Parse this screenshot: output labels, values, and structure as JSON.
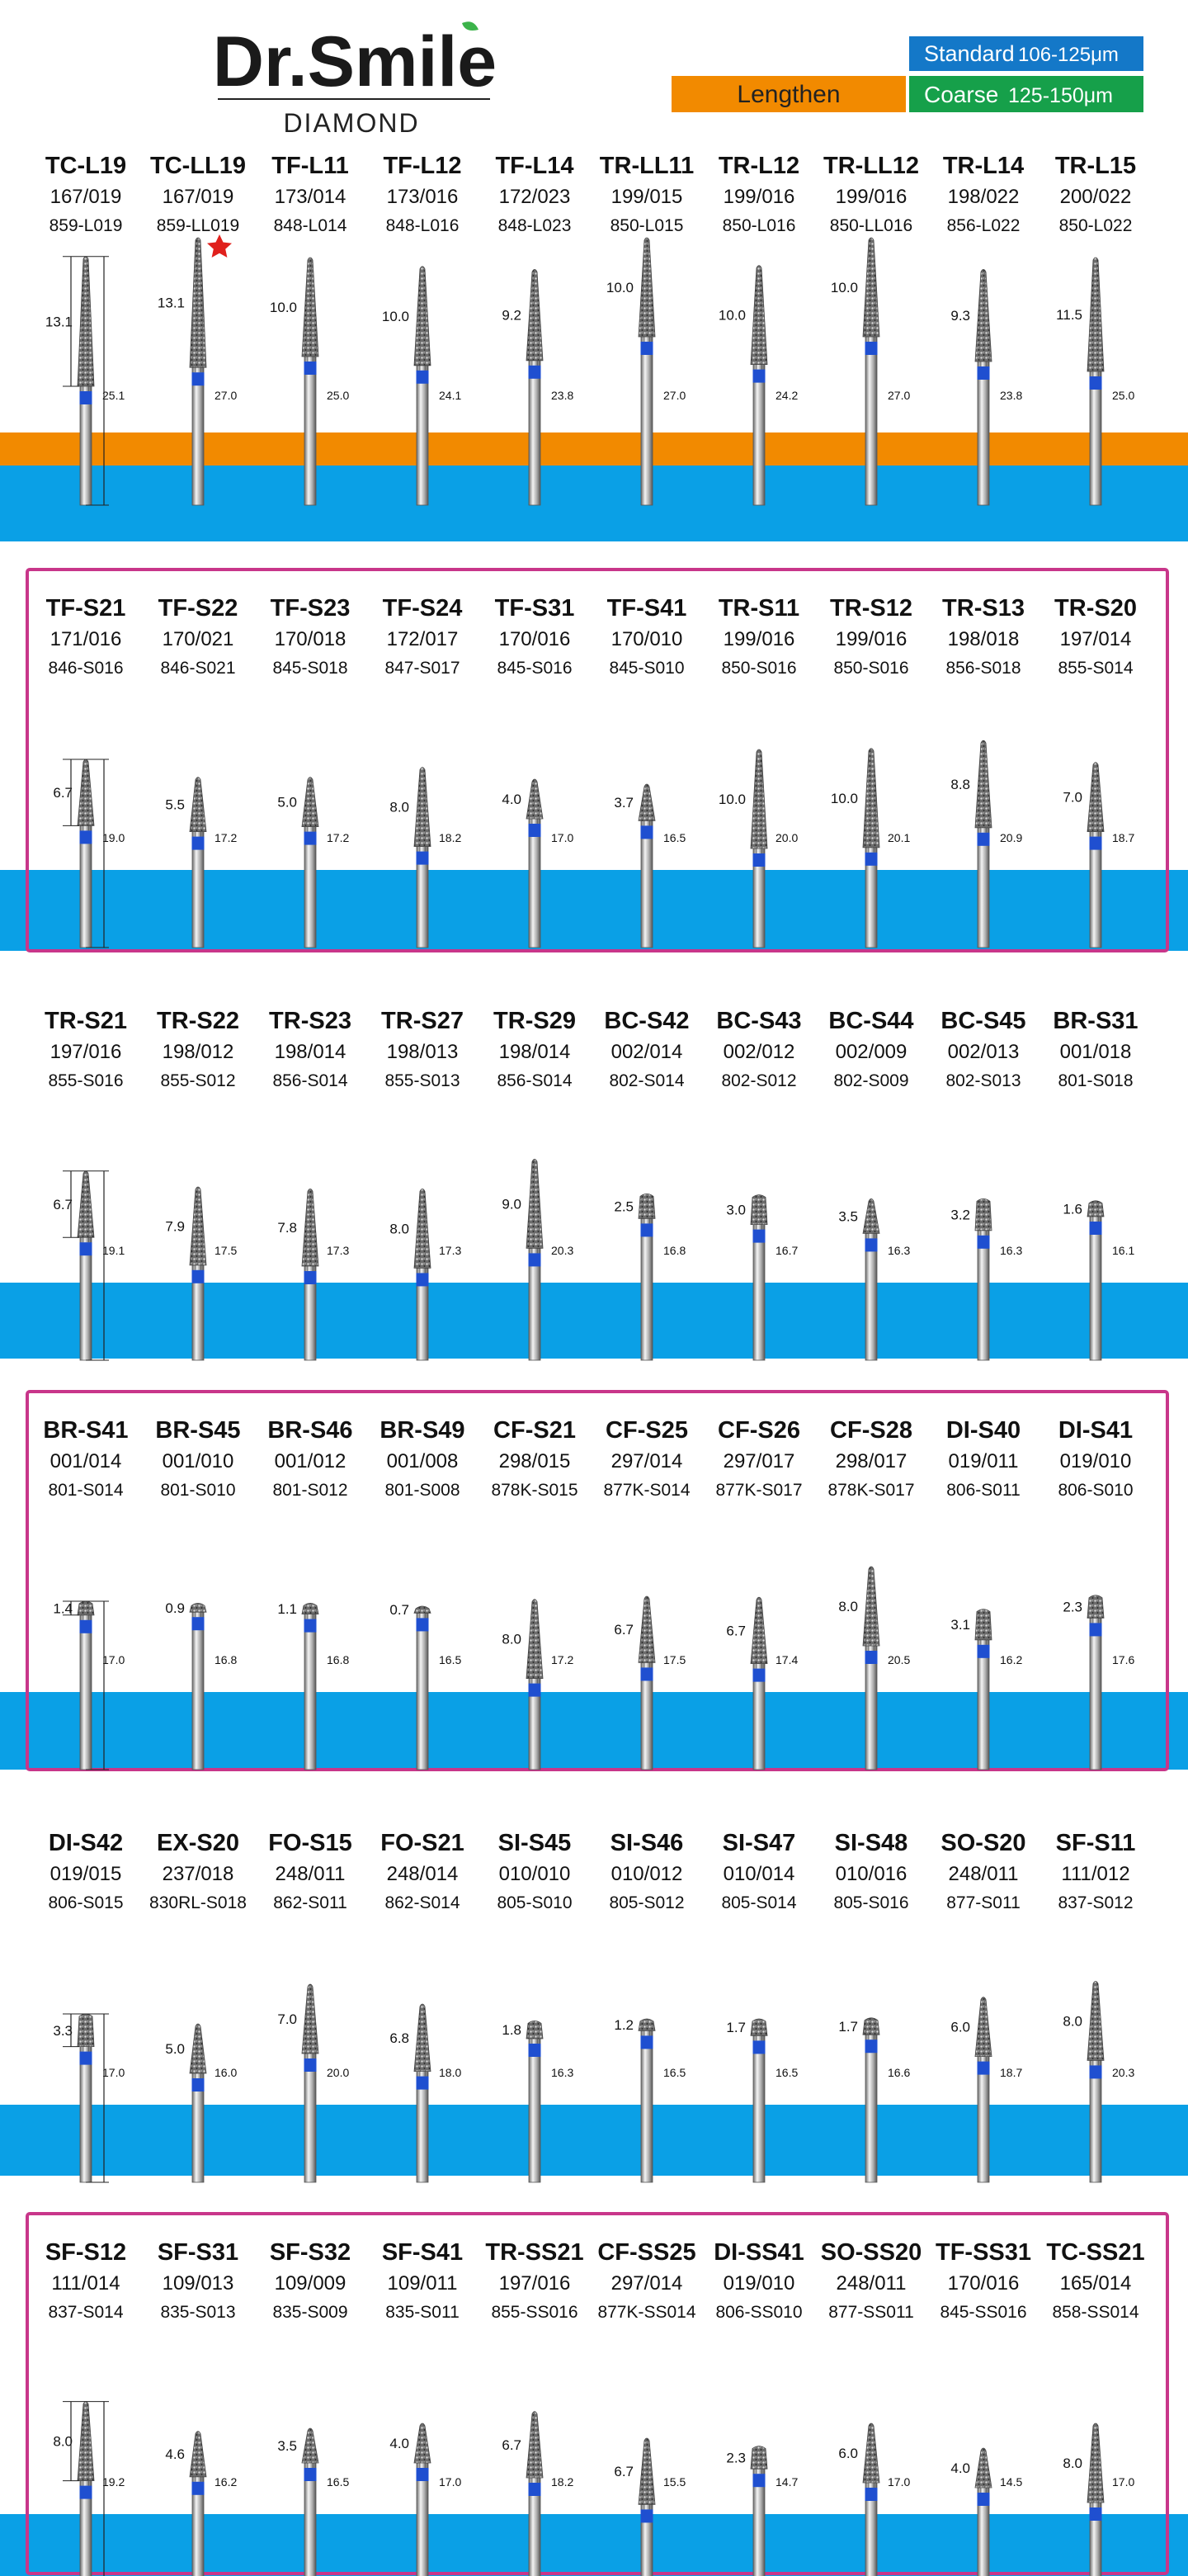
{
  "header": {
    "brand": "Dr.Smile",
    "subtitle": "DIAMOND",
    "legend": {
      "standard": {
        "label": "Standard",
        "range": "106-125μm"
      },
      "lengthen": {
        "label": "Lengthen"
      },
      "coarse": {
        "label": "Coarse",
        "range": "125-150μm"
      }
    }
  },
  "sections": [
    {
      "items": [
        {
          "code": "TC-L19",
          "iso": "167/019",
          "ref": "859-L019",
          "head": "13.1",
          "total": "25.1"
        },
        {
          "code": "TC-LL19",
          "iso": "167/019",
          "ref": "859-LL019",
          "head": "13.1",
          "total": "27.0"
        },
        {
          "code": "TF-L11",
          "iso": "173/014",
          "ref": "848-L014",
          "head": "10.0",
          "total": "25.0"
        },
        {
          "code": "TF-L12",
          "iso": "173/016",
          "ref": "848-L016",
          "head": "10.0",
          "total": "24.1"
        },
        {
          "code": "TF-L14",
          "iso": "172/023",
          "ref": "848-L023",
          "head": "9.2",
          "total": "23.8"
        },
        {
          "code": "TR-LL11",
          "iso": "199/015",
          "ref": "850-L015",
          "head": "10.0",
          "total": "27.0"
        },
        {
          "code": "TR-L12",
          "iso": "199/016",
          "ref": "850-L016",
          "head": "10.0",
          "total": "24.2"
        },
        {
          "code": "TR-LL12",
          "iso": "199/016",
          "ref": "850-LL016",
          "head": "10.0",
          "total": "27.0"
        },
        {
          "code": "TR-L14",
          "iso": "198/022",
          "ref": "856-L022",
          "head": "9.3",
          "total": "23.8"
        },
        {
          "code": "TR-L15",
          "iso": "200/022",
          "ref": "850-L022",
          "head": "11.5",
          "total": "25.0"
        }
      ]
    },
    {
      "items": [
        {
          "code": "TF-S21",
          "iso": "171/016",
          "ref": "846-S016",
          "head": "6.7",
          "total": "19.0"
        },
        {
          "code": "TF-S22",
          "iso": "170/021",
          "ref": "846-S021",
          "head": "5.5",
          "total": "17.2"
        },
        {
          "code": "TF-S23",
          "iso": "170/018",
          "ref": "845-S018",
          "head": "5.0",
          "total": "17.2"
        },
        {
          "code": "TF-S24",
          "iso": "172/017",
          "ref": "847-S017",
          "head": "8.0",
          "total": "18.2"
        },
        {
          "code": "TF-S31",
          "iso": "170/016",
          "ref": "845-S016",
          "head": "4.0",
          "total": "17.0"
        },
        {
          "code": "TF-S41",
          "iso": "170/010",
          "ref": "845-S010",
          "head": "3.7",
          "total": "16.5"
        },
        {
          "code": "TR-S11",
          "iso": "199/016",
          "ref": "850-S016",
          "head": "10.0",
          "total": "20.0"
        },
        {
          "code": "TR-S12",
          "iso": "199/016",
          "ref": "850-S016",
          "head": "10.0",
          "total": "20.1"
        },
        {
          "code": "TR-S13",
          "iso": "198/018",
          "ref": "856-S018",
          "head": "8.8",
          "total": "20.9"
        },
        {
          "code": "TR-S20",
          "iso": "197/014",
          "ref": "855-S014",
          "head": "7.0",
          "total": "18.7"
        }
      ]
    },
    {
      "items": [
        {
          "code": "TR-S21",
          "iso": "197/016",
          "ref": "855-S016",
          "head": "6.7",
          "total": "19.1"
        },
        {
          "code": "TR-S22",
          "iso": "198/012",
          "ref": "855-S012",
          "head": "7.9",
          "total": "17.5"
        },
        {
          "code": "TR-S23",
          "iso": "198/014",
          "ref": "856-S014",
          "head": "7.8",
          "total": "17.3"
        },
        {
          "code": "TR-S27",
          "iso": "198/013",
          "ref": "855-S013",
          "head": "8.0",
          "total": "17.3"
        },
        {
          "code": "TR-S29",
          "iso": "198/014",
          "ref": "856-S014",
          "head": "9.0",
          "total": "20.3"
        },
        {
          "code": "BC-S42",
          "iso": "002/014",
          "ref": "802-S014",
          "head": "2.5",
          "total": "16.8"
        },
        {
          "code": "BC-S43",
          "iso": "002/012",
          "ref": "802-S012",
          "head": "3.0",
          "total": "16.7"
        },
        {
          "code": "BC-S44",
          "iso": "002/009",
          "ref": "802-S009",
          "head": "3.5",
          "total": "16.3"
        },
        {
          "code": "BC-S45",
          "iso": "002/013",
          "ref": "802-S013",
          "head": "3.2",
          "total": "16.3"
        },
        {
          "code": "BR-S31",
          "iso": "001/018",
          "ref": "801-S018",
          "head": "1.6",
          "total": "16.1"
        }
      ]
    },
    {
      "items": [
        {
          "code": "BR-S41",
          "iso": "001/014",
          "ref": "801-S014",
          "head": "1.4",
          "total": "17.0"
        },
        {
          "code": "BR-S45",
          "iso": "001/010",
          "ref": "801-S010",
          "head": "0.9",
          "total": "16.8"
        },
        {
          "code": "BR-S46",
          "iso": "001/012",
          "ref": "801-S012",
          "head": "1.1",
          "total": "16.8"
        },
        {
          "code": "BR-S49",
          "iso": "001/008",
          "ref": "801-S008",
          "head": "0.7",
          "total": "16.5"
        },
        {
          "code": "CF-S21",
          "iso": "298/015",
          "ref": "878K-S015",
          "head": "8.0",
          "total": "17.2"
        },
        {
          "code": "CF-S25",
          "iso": "297/014",
          "ref": "877K-S014",
          "head": "6.7",
          "total": "17.5"
        },
        {
          "code": "CF-S26",
          "iso": "297/017",
          "ref": "877K-S017",
          "head": "6.7",
          "total": "17.4"
        },
        {
          "code": "CF-S28",
          "iso": "298/017",
          "ref": "878K-S017",
          "head": "8.0",
          "total": "20.5"
        },
        {
          "code": "DI-S40",
          "iso": "019/011",
          "ref": "806-S011",
          "head": "3.1",
          "total": "16.2"
        },
        {
          "code": "DI-S41",
          "iso": "019/010",
          "ref": "806-S010",
          "head": "2.3",
          "total": "17.6"
        }
      ]
    },
    {
      "items": [
        {
          "code": "DI-S42",
          "iso": "019/015",
          "ref": "806-S015",
          "head": "3.3",
          "total": "17.0"
        },
        {
          "code": "EX-S20",
          "iso": "237/018",
          "ref": "830RL-S018",
          "head": "5.0",
          "total": "16.0"
        },
        {
          "code": "FO-S15",
          "iso": "248/011",
          "ref": "862-S011",
          "head": "7.0",
          "total": "20.0"
        },
        {
          "code": "FO-S21",
          "iso": "248/014",
          "ref": "862-S014",
          "head": "6.8",
          "total": "18.0"
        },
        {
          "code": "SI-S45",
          "iso": "010/010",
          "ref": "805-S010",
          "head": "1.8",
          "total": "16.3"
        },
        {
          "code": "SI-S46",
          "iso": "010/012",
          "ref": "805-S012",
          "head": "1.2",
          "total": "16.5"
        },
        {
          "code": "SI-S47",
          "iso": "010/014",
          "ref": "805-S014",
          "head": "1.7",
          "total": "16.5"
        },
        {
          "code": "SI-S48",
          "iso": "010/016",
          "ref": "805-S016",
          "head": "1.7",
          "total": "16.6"
        },
        {
          "code": "SO-S20",
          "iso": "248/011",
          "ref": "877-S011",
          "head": "6.0",
          "total": "18.7"
        },
        {
          "code": "SF-S11",
          "iso": "111/012",
          "ref": "837-S012",
          "head": "8.0",
          "total": "20.3"
        }
      ]
    },
    {
      "items": [
        {
          "code": "SF-S12",
          "iso": "111/014",
          "ref": "837-S014",
          "head": "8.0",
          "total": "19.2"
        },
        {
          "code": "SF-S31",
          "iso": "109/013",
          "ref": "835-S013",
          "head": "4.6",
          "total": "16.2"
        },
        {
          "code": "SF-S32",
          "iso": "109/009",
          "ref": "835-S009",
          "head": "3.5",
          "total": "16.5"
        },
        {
          "code": "SF-S41",
          "iso": "109/011",
          "ref": "835-S011",
          "head": "4.0",
          "total": "17.0"
        },
        {
          "code": "TR-SS21",
          "iso": "197/016",
          "ref": "855-SS016",
          "head": "6.7",
          "total": "18.2"
        },
        {
          "code": "CF-SS25",
          "iso": "297/014",
          "ref": "877K-SS014",
          "head": "6.7",
          "total": "15.5"
        },
        {
          "code": "DI-SS41",
          "iso": "019/010",
          "ref": "806-SS010",
          "head": "2.3",
          "total": "14.7"
        },
        {
          "code": "SO-SS20",
          "iso": "248/011",
          "ref": "877-SS011",
          "head": "6.0",
          "total": "17.0"
        },
        {
          "code": "TF-SS31",
          "iso": "170/016",
          "ref": "845-SS016",
          "head": "4.0",
          "total": "14.5"
        },
        {
          "code": "TC-SS21",
          "iso": "165/014",
          "ref": "858-SS014",
          "head": "8.0",
          "total": "17.0"
        }
      ]
    }
  ]
}
